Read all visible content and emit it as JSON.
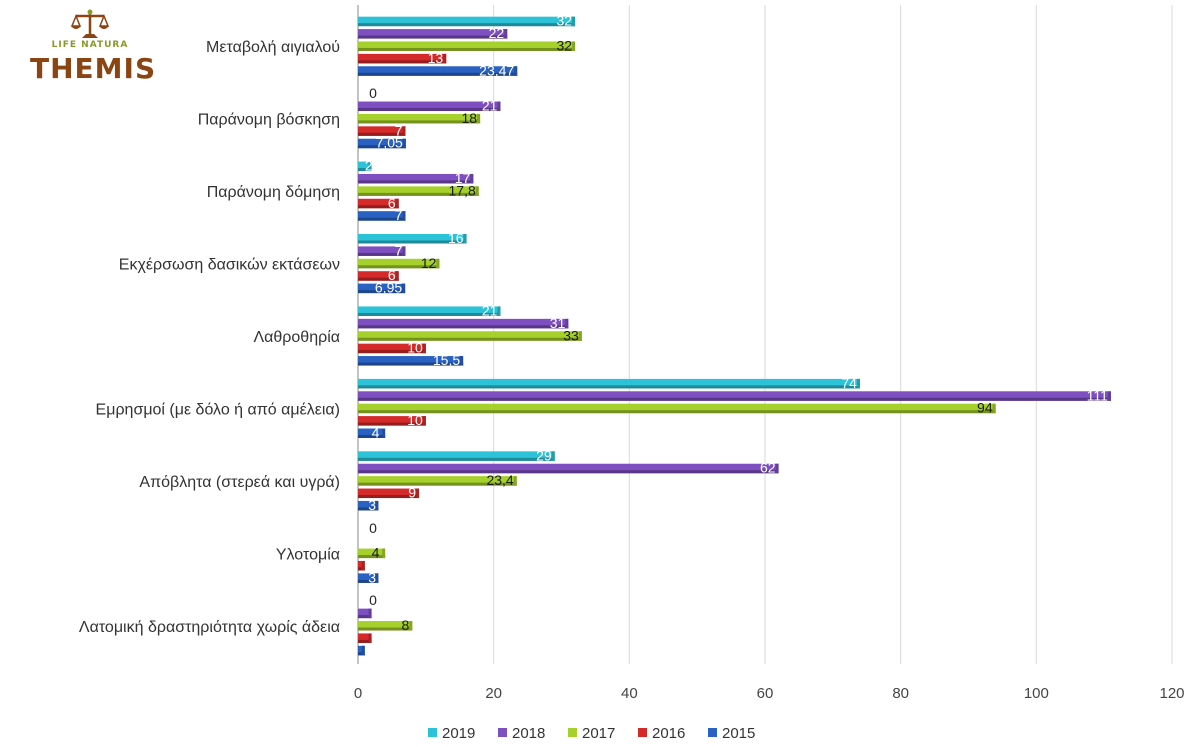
{
  "logo": {
    "small_text": "LIFE NATURA",
    "big_text": "THEMIS",
    "icon": "scales-of-justice-icon"
  },
  "chart_data": {
    "type": "bar",
    "orientation": "horizontal",
    "categories": [
      "Μεταβολή αιγιαλού",
      "Παράνομη βόσκηση",
      "Παράνομη δόμηση",
      "Εκχέρσωση δασικών εκτάσεων",
      "Λαθροθηρία",
      "Εμρησμοί (με δόλο ή από αμέλεια)",
      "Απόβλητα (στερεά και υγρά)",
      "Υλοτομία",
      "Λατομική δραστηριότητα χωρίς άδεια"
    ],
    "series": [
      {
        "name": "2019",
        "color": "#2cc3d8",
        "values": [
          32,
          0,
          2,
          16,
          21,
          74,
          29,
          0,
          0
        ],
        "labels": [
          "32",
          "0",
          "2",
          "16",
          "21",
          "74",
          "29",
          "0",
          "0"
        ]
      },
      {
        "name": "2018",
        "color": "#7d4fc0",
        "values": [
          22,
          21,
          17,
          7,
          31,
          111,
          62,
          null,
          2
        ],
        "labels": [
          "22",
          "21",
          "17",
          "7",
          "31",
          "111",
          "62",
          "",
          ""
        ]
      },
      {
        "name": "2017",
        "color": "#a6d02c",
        "values": [
          32,
          18,
          17.8,
          12,
          33,
          94,
          23.4,
          4,
          8
        ],
        "labels": [
          "32",
          "18",
          "17,8",
          "12",
          "33",
          "94",
          "23,4",
          "4",
          "8"
        ]
      },
      {
        "name": "2016",
        "color": "#d42a2a",
        "values": [
          13,
          7,
          6,
          6,
          10,
          10,
          9,
          1,
          2
        ],
        "labels": [
          "13",
          "7",
          "6",
          "6",
          "10",
          "10",
          "9",
          "",
          ""
        ]
      },
      {
        "name": "2015",
        "color": "#2a62c4",
        "values": [
          23.47,
          7.05,
          7,
          6.95,
          15.5,
          4,
          3,
          3,
          1
        ],
        "labels": [
          "23,47",
          "7,05",
          "7",
          "6,95",
          "15,5",
          "4",
          "3",
          "3",
          ""
        ]
      }
    ],
    "xlim": [
      0,
      120
    ],
    "x_ticks": [
      "0",
      "20",
      "40",
      "60",
      "80",
      "100",
      "120"
    ],
    "grid": true,
    "legend_position": "bottom",
    "title": "",
    "xlabel": "",
    "ylabel": ""
  }
}
